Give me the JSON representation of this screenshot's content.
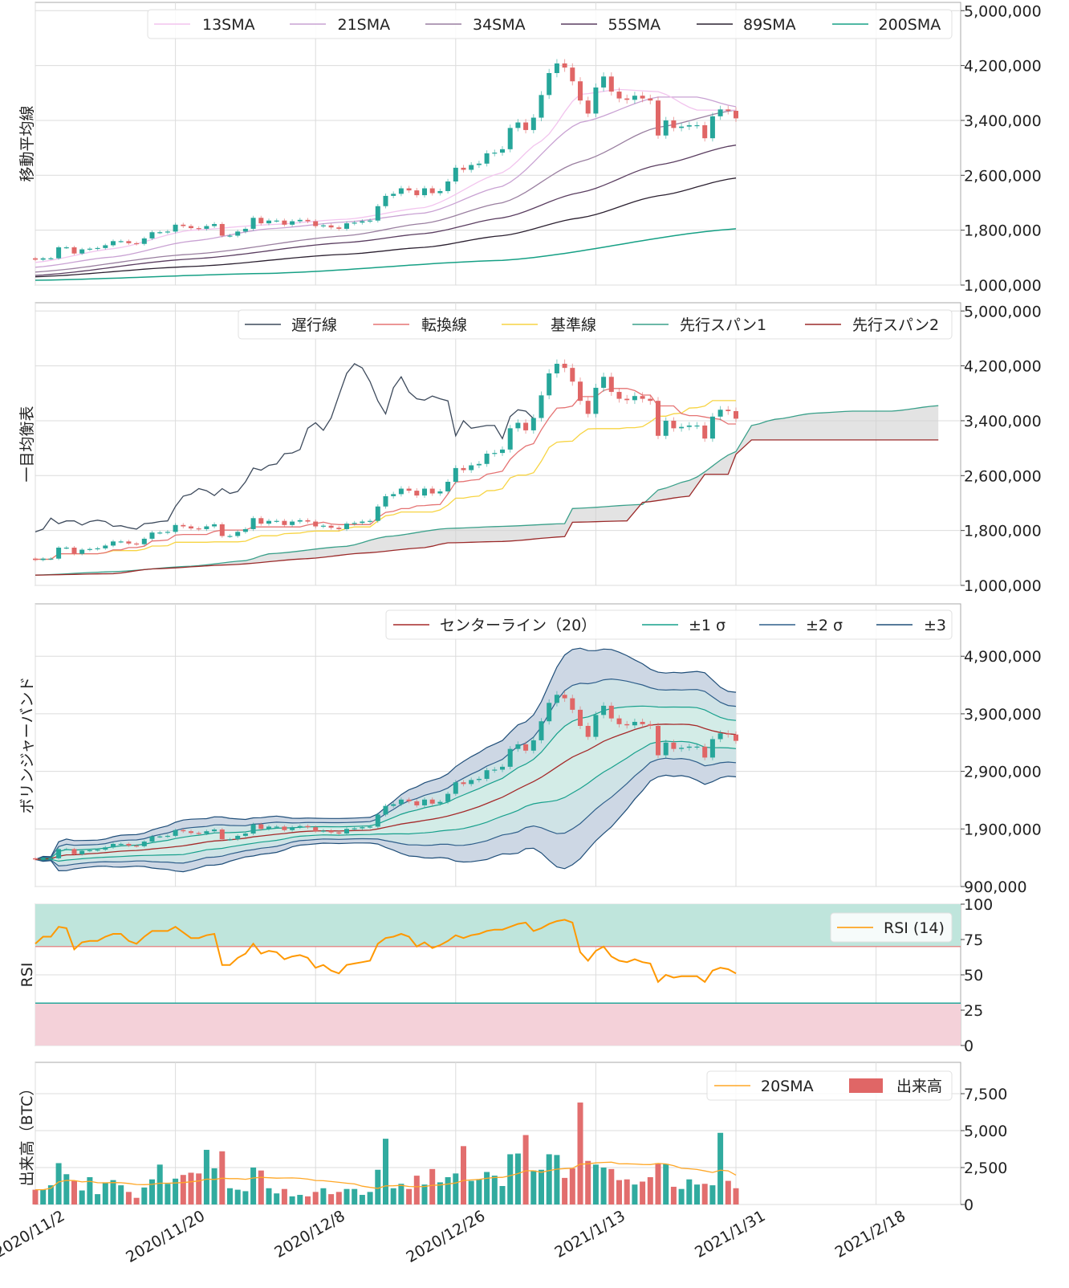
{
  "colors": {
    "up": "#26a69a",
    "down": "#e06666",
    "grid": "#dcdcdc",
    "frame": "#aaaaaa",
    "sma13": "#f2c4ee",
    "sma21": "#c9a2d3",
    "sma34": "#9a7fa0",
    "sma55": "#5a3d60",
    "sma89": "#2b2030",
    "sma200": "#16a085",
    "chikou": "#3d4a5c",
    "tenkan": "#e57373",
    "kijun": "#f7d443",
    "span1": "#3aa08a",
    "span2": "#9b2a2a",
    "cloud": "#d0d0d0",
    "bb_center": "#a52a2a",
    "bb1": "#17a08c",
    "bb2": "#2e5e8a",
    "bb3": "#1f4e79",
    "rsi": "#ff9800",
    "rsi_over": "#bfe5dc",
    "rsi_under": "#f4d1d9",
    "vol_sma": "#ffa726"
  },
  "x_axis": {
    "ticks": [
      "2020/11/2",
      "2020/11/20",
      "2020/12/8",
      "2020/12/26",
      "2021/1/13",
      "2021/1/31",
      "2021/2/18"
    ],
    "range": [
      "2020/11/2",
      "2021/2/28"
    ]
  },
  "chart_data": [
    {
      "type": "candlestick",
      "ylabel": "移動平均線",
      "ylim": [
        1000000,
        5120000
      ],
      "yticks": [
        "1,000,000",
        "1,800,000",
        "2,600,000",
        "3,400,000",
        "4,200,000",
        "5,000,000"
      ],
      "legend": [
        "13SMA",
        "21SMA",
        "34SMA",
        "55SMA",
        "89SMA",
        "200SMA"
      ],
      "legend_position": "top-right",
      "sma": {
        "13SMA": [
          [
            "2020/11/2",
            1330000
          ],
          [
            "2020/11/12",
            1530000
          ],
          [
            "2020/11/22",
            1800000
          ],
          [
            "2020/12/2",
            1880000
          ],
          [
            "2020/12/12",
            1960000
          ],
          [
            "2020/12/22",
            2130000
          ],
          [
            "2021/1/1",
            2640000
          ],
          [
            "2021/1/6",
            3100000
          ],
          [
            "2021/1/11",
            3780000
          ],
          [
            "2021/1/16",
            3850000
          ],
          [
            "2021/1/21",
            3820000
          ],
          [
            "2021/1/26",
            3550000
          ],
          [
            "2021/1/31",
            3550000
          ]
        ],
        "21SMA": [
          [
            "2020/11/2",
            1260000
          ],
          [
            "2020/11/12",
            1410000
          ],
          [
            "2020/11/22",
            1640000
          ],
          [
            "2020/12/2",
            1820000
          ],
          [
            "2020/12/12",
            1920000
          ],
          [
            "2020/12/22",
            2050000
          ],
          [
            "2021/1/1",
            2440000
          ],
          [
            "2021/1/11",
            3370000
          ],
          [
            "2021/1/21",
            3740000
          ],
          [
            "2021/1/26",
            3740000
          ],
          [
            "2021/1/31",
            3600000
          ]
        ],
        "34SMA": [
          [
            "2020/11/2",
            1190000
          ],
          [
            "2020/11/22",
            1450000
          ],
          [
            "2020/12/12",
            1720000
          ],
          [
            "2020/12/22",
            1900000
          ],
          [
            "2021/1/1",
            2200000
          ],
          [
            "2021/1/11",
            2800000
          ],
          [
            "2021/1/21",
            3300000
          ],
          [
            "2021/1/31",
            3550000
          ]
        ],
        "55SMA": [
          [
            "2020/11/2",
            1140000
          ],
          [
            "2020/11/22",
            1380000
          ],
          [
            "2020/12/12",
            1620000
          ],
          [
            "2020/12/22",
            1750000
          ],
          [
            "2021/1/1",
            1980000
          ],
          [
            "2021/1/11",
            2350000
          ],
          [
            "2021/1/21",
            2750000
          ],
          [
            "2021/1/31",
            3040000
          ]
        ],
        "89SMA": [
          [
            "2020/11/2",
            1120000
          ],
          [
            "2020/11/22",
            1270000
          ],
          [
            "2020/12/12",
            1450000
          ],
          [
            "2020/12/22",
            1550000
          ],
          [
            "2021/1/1",
            1720000
          ],
          [
            "2021/1/11",
            1980000
          ],
          [
            "2021/1/21",
            2300000
          ],
          [
            "2021/1/31",
            2560000
          ]
        ],
        "200SMA": [
          [
            "2020/11/2",
            1070000
          ],
          [
            "2020/12/2",
            1170000
          ],
          [
            "2021/1/1",
            1360000
          ],
          [
            "2021/1/31",
            1820000
          ]
        ]
      }
    },
    {
      "type": "candlestick",
      "ylabel": "一目均衡表",
      "ylim": [
        1000000,
        5120000
      ],
      "yticks": [
        "1,000,000",
        "1,800,000",
        "2,600,000",
        "3,400,000",
        "4,200,000",
        "5,000,000"
      ],
      "legend": [
        "遅行線",
        "転換線",
        "基準線",
        "先行スパン1",
        "先行スパン2"
      ],
      "legend_position": "top-right",
      "span1": [
        [
          "2020/11/2",
          1150000
        ],
        [
          "2020/11/12",
          1200000
        ],
        [
          "2020/11/22",
          1280000
        ],
        [
          "2020/11/29",
          1360000
        ],
        [
          "2020/12/2",
          1460000
        ],
        [
          "2020/12/12",
          1570000
        ],
        [
          "2020/12/17",
          1710000
        ],
        [
          "2020/12/25",
          1830000
        ],
        [
          "2021/1/1",
          1860000
        ],
        [
          "2021/1/9",
          1900000
        ],
        [
          "2021/1/10",
          2120000
        ],
        [
          "2021/1/19",
          2180000
        ],
        [
          "2021/1/21",
          2390000
        ],
        [
          "2021/1/25",
          2530000
        ],
        [
          "2021/1/31",
          2950000
        ],
        [
          "2021/2/2",
          3330000
        ],
        [
          "2021/2/5",
          3420000
        ],
        [
          "2021/2/10",
          3510000
        ],
        [
          "2021/2/15",
          3540000
        ],
        [
          "2021/2/20",
          3540000
        ],
        [
          "2021/2/26",
          3620000
        ]
      ],
      "span2": [
        [
          "2020/11/2",
          1150000
        ],
        [
          "2020/11/12",
          1170000
        ],
        [
          "2020/11/17",
          1240000
        ],
        [
          "2020/11/27",
          1300000
        ],
        [
          "2020/12/7",
          1390000
        ],
        [
          "2020/12/14",
          1470000
        ],
        [
          "2020/12/22",
          1550000
        ],
        [
          "2020/12/25",
          1620000
        ],
        [
          "2021/1/1",
          1640000
        ],
        [
          "2021/1/9",
          1710000
        ],
        [
          "2021/1/10",
          1920000
        ],
        [
          "2021/1/17",
          1940000
        ],
        [
          "2021/1/19",
          2210000
        ],
        [
          "2021/1/25",
          2300000
        ],
        [
          "2021/1/27",
          2620000
        ],
        [
          "2021/1/30",
          2620000
        ],
        [
          "2021/1/31",
          2910000
        ],
        [
          "2021/2/2",
          3120000
        ],
        [
          "2021/2/26",
          3120000
        ]
      ]
    },
    {
      "type": "candlestick",
      "ylabel": "ボリンジャーバンド",
      "ylim": [
        900000,
        5810000
      ],
      "yticks": [
        "900,000",
        "1,900,000",
        "2,900,000",
        "3,900,000",
        "4,900,000"
      ],
      "legend": [
        "センターライン（20）",
        "±1 σ",
        "±2 σ",
        "±3"
      ],
      "legend_position": "top-right"
    },
    {
      "type": "line",
      "ylabel": "RSI",
      "ylim": [
        0,
        100
      ],
      "yticks": [
        "0",
        "25",
        "50",
        "75",
        "100"
      ],
      "overbought": 70,
      "oversold": 30,
      "legend": [
        "RSI (14)"
      ],
      "legend_position": "top-right",
      "values": [
        72,
        77,
        77,
        84,
        83,
        68,
        73,
        74,
        74,
        77,
        79,
        79,
        74,
        72,
        77,
        81,
        81,
        81,
        84,
        80,
        76,
        76,
        78,
        79,
        57,
        57,
        62,
        65,
        72,
        65,
        67,
        66,
        61,
        63,
        64,
        62,
        55,
        57,
        53,
        51,
        57,
        58,
        59,
        60,
        72,
        76,
        77,
        79,
        77,
        70,
        73,
        69,
        71,
        74,
        78,
        76,
        78,
        79,
        81,
        82,
        82,
        84,
        86,
        87,
        81,
        83,
        86,
        88,
        89,
        87,
        66,
        60,
        67,
        70,
        63,
        60,
        59,
        61,
        59,
        58,
        45,
        50,
        48,
        49,
        49,
        49,
        45,
        53,
        55,
        54,
        51
      ]
    },
    {
      "type": "bar",
      "ylabel": "出来高（BTC）",
      "ylim": [
        0,
        9620
      ],
      "yticks": [
        "0",
        "2,500",
        "5,000",
        "7,500"
      ],
      "legend": [
        "20SMA",
        "出来高"
      ],
      "legend_position": "top-right",
      "values": [
        1000,
        1000,
        1300,
        2800,
        2050,
        1600,
        950,
        1850,
        700,
        1450,
        1650,
        1300,
        850,
        450,
        1150,
        1700,
        2700,
        1400,
        1750,
        2000,
        2150,
        2100,
        3700,
        2450,
        3600,
        1100,
        1000,
        900,
        2500,
        2300,
        1100,
        750,
        1050,
        550,
        650,
        550,
        850,
        1100,
        700,
        850,
        1050,
        1050,
        650,
        850,
        2350,
        4450,
        1100,
        1400,
        1050,
        1950,
        1350,
        2400,
        1500,
        1850,
        2100,
        3950,
        1600,
        1700,
        2200,
        1950,
        1250,
        3400,
        3450,
        4700,
        2300,
        2350,
        3400,
        3350,
        1800,
        2450,
        6900,
        2950,
        2700,
        2500,
        2400,
        1650,
        1700,
        1350,
        1550,
        1850,
        2800,
        2750,
        1200,
        1050,
        1700,
        1350,
        1400,
        1300,
        4850,
        1600,
        1100
      ]
    }
  ],
  "candles": {
    "first_date": "2020/11/2",
    "first_open": 1390000,
    "close": [
      1370000,
      1390000,
      1390000,
      1550000,
      1550000,
      1460000,
      1520000,
      1530000,
      1540000,
      1580000,
      1640000,
      1640000,
      1610000,
      1600000,
      1680000,
      1770000,
      1770000,
      1780000,
      1880000,
      1860000,
      1830000,
      1820000,
      1860000,
      1890000,
      1720000,
      1720000,
      1780000,
      1820000,
      1980000,
      1900000,
      1940000,
      1940000,
      1880000,
      1930000,
      1950000,
      1930000,
      1860000,
      1870000,
      1840000,
      1820000,
      1900000,
      1910000,
      1930000,
      1940000,
      2150000,
      2300000,
      2330000,
      2410000,
      2380000,
      2310000,
      2410000,
      2340000,
      2370000,
      2510000,
      2710000,
      2680000,
      2750000,
      2770000,
      2920000,
      2930000,
      2980000,
      3290000,
      3370000,
      3260000,
      3440000,
      3770000,
      4090000,
      4230000,
      4170000,
      3970000,
      3690000,
      3500000,
      3880000,
      4040000,
      3820000,
      3720000,
      3700000,
      3760000,
      3720000,
      3690000,
      3180000,
      3400000,
      3290000,
      3310000,
      3330000,
      3330000,
      3140000,
      3460000,
      3560000,
      3540000,
      3430000
    ]
  }
}
